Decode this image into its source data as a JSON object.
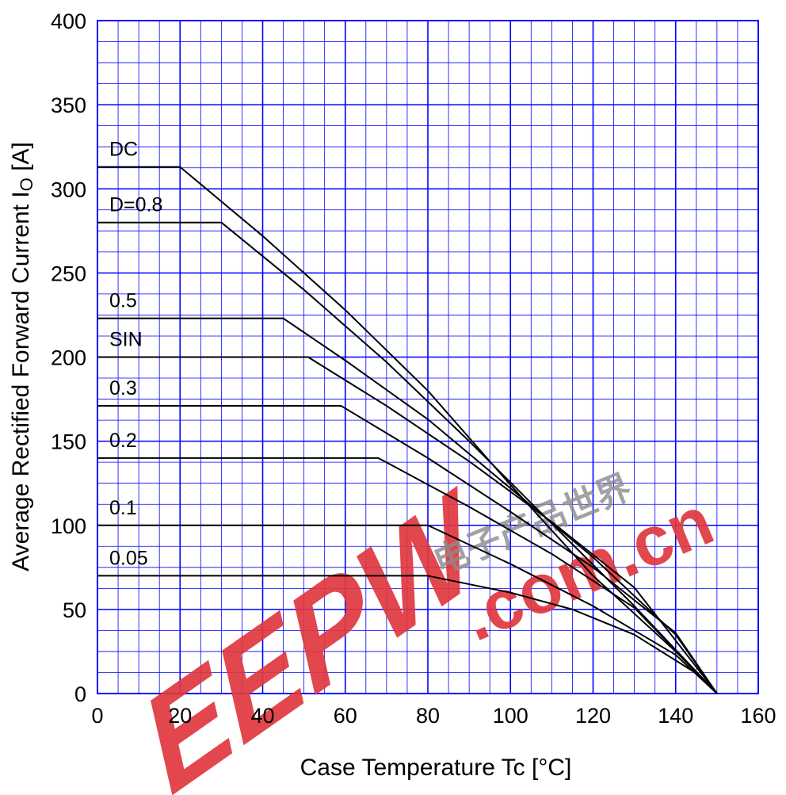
{
  "chart_data": {
    "type": "line",
    "title": "",
    "xlabel": "Case Temperature  Tc  [°C]",
    "ylabel": "Average Rectified Forward Current  I",
    "ylabel_subscript": "O",
    "ylabel_unit": " [A]",
    "xlim": [
      0,
      160
    ],
    "ylim": [
      0,
      400
    ],
    "x_ticks": [
      0,
      20,
      40,
      60,
      80,
      100,
      120,
      140,
      160
    ],
    "y_ticks": [
      0,
      50,
      100,
      150,
      200,
      250,
      300,
      350,
      400
    ],
    "grid": true,
    "legend": "labels above each curve at left",
    "series": [
      {
        "name": "DC",
        "x": [
          0,
          20,
          40,
          60,
          80,
          100,
          120,
          140,
          150
        ],
        "y": [
          313,
          313,
          272,
          228,
          180,
          124,
          70,
          25,
          0
        ]
      },
      {
        "name": "D=0.8",
        "x": [
          0,
          30,
          50,
          70,
          90,
          110,
          130,
          150
        ],
        "y": [
          280,
          280,
          240,
          197,
          150,
          101,
          52,
          0
        ]
      },
      {
        "name": "0.5",
        "x": [
          0,
          45,
          60,
          80,
          100,
          120,
          140,
          150
        ],
        "y": [
          223,
          223,
          198,
          163,
          122,
          81,
          35,
          0
        ]
      },
      {
        "name": "SIN",
        "x": [
          0,
          51,
          70,
          90,
          110,
          130,
          150
        ],
        "y": [
          200,
          200,
          171,
          138,
          102,
          63,
          0
        ]
      },
      {
        "name": "0.3",
        "x": [
          0,
          59,
          80,
          100,
          120,
          140,
          150
        ],
        "y": [
          171,
          171,
          140,
          108,
          75,
          36,
          0
        ]
      },
      {
        "name": "0.2",
        "x": [
          0,
          68,
          90,
          110,
          130,
          150
        ],
        "y": [
          140,
          140,
          111,
          83,
          51,
          0
        ]
      },
      {
        "name": "0.1",
        "x": [
          0,
          80,
          100,
          120,
          140,
          150
        ],
        "y": [
          100,
          100,
          77,
          52,
          23,
          0
        ]
      },
      {
        "name": "0.05",
        "x": [
          0,
          80,
          100,
          115,
          130,
          145,
          150
        ],
        "y": [
          70,
          70,
          60,
          50,
          35,
          12,
          0
        ]
      }
    ]
  },
  "watermark": {
    "logo_text": "EEPW",
    "domain_text": ".com.cn",
    "chinese_text": "电子产品世界",
    "color": "#e0383e"
  },
  "colors": {
    "grid": "#0000ff",
    "curve": "#000000"
  }
}
